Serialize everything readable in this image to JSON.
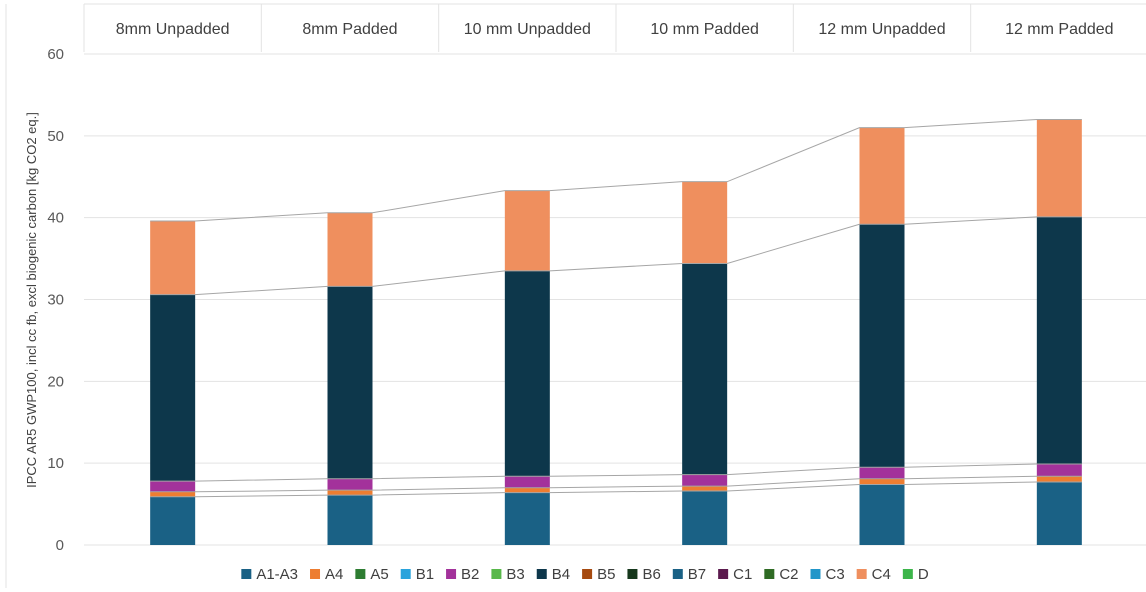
{
  "chart_data": {
    "type": "bar",
    "stacked": true,
    "title": "",
    "xlabel": "",
    "ylabel": "IPCC AR5 GWP100, incl cc fb, excl biogenic carbon [kg CO2 eq.]",
    "ylim": [
      0,
      60
    ],
    "yticks": [
      0,
      10,
      20,
      30,
      40,
      50,
      60
    ],
    "grid": true,
    "legend_position": "bottom",
    "category_labels_position": "top",
    "series_lines": true,
    "categories": [
      "8mm Unpadded",
      "8mm Padded",
      "10 mm Unpadded",
      "10 mm Padded",
      "12 mm Unpadded",
      "12 mm Padded"
    ],
    "series": [
      {
        "name": "A1-A3",
        "color": "#1a6185",
        "values": [
          5.9,
          6.1,
          6.4,
          6.6,
          7.4,
          7.7
        ]
      },
      {
        "name": "A4",
        "color": "#ed7d31",
        "values": [
          0.6,
          0.6,
          0.6,
          0.6,
          0.7,
          0.7
        ]
      },
      {
        "name": "A5",
        "color": "#2e7d32",
        "values": [
          0,
          0,
          0,
          0,
          0,
          0
        ]
      },
      {
        "name": "B1",
        "color": "#29a3dc",
        "values": [
          0,
          0,
          0,
          0,
          0,
          0
        ]
      },
      {
        "name": "B2",
        "color": "#a3329b",
        "values": [
          1.3,
          1.4,
          1.4,
          1.4,
          1.4,
          1.5
        ]
      },
      {
        "name": "B3",
        "color": "#58b84a",
        "values": [
          0,
          0,
          0,
          0,
          0,
          0
        ]
      },
      {
        "name": "B4",
        "color": "#0d374b",
        "values": [
          22.8,
          23.5,
          25.1,
          25.8,
          29.7,
          30.2
        ]
      },
      {
        "name": "B5",
        "color": "#a64a10",
        "values": [
          0,
          0,
          0,
          0,
          0,
          0
        ]
      },
      {
        "name": "B6",
        "color": "#16381c",
        "values": [
          0,
          0,
          0,
          0,
          0,
          0
        ]
      },
      {
        "name": "B7",
        "color": "#1a6185",
        "values": [
          0,
          0,
          0,
          0,
          0,
          0
        ]
      },
      {
        "name": "C1",
        "color": "#5c1a4e",
        "values": [
          0,
          0,
          0,
          0,
          0,
          0
        ]
      },
      {
        "name": "C2",
        "color": "#2f6b24",
        "values": [
          0,
          0,
          0,
          0,
          0,
          0
        ]
      },
      {
        "name": "C3",
        "color": "#2196c9",
        "values": [
          0,
          0,
          0,
          0,
          0,
          0
        ]
      },
      {
        "name": "C4",
        "color": "#ef8f5e",
        "values": [
          9.0,
          9.0,
          9.8,
          10.0,
          11.8,
          11.9
        ]
      },
      {
        "name": "D",
        "color": "#3cb54a",
        "values": [
          0,
          0,
          0,
          0,
          0,
          0
        ]
      }
    ]
  }
}
